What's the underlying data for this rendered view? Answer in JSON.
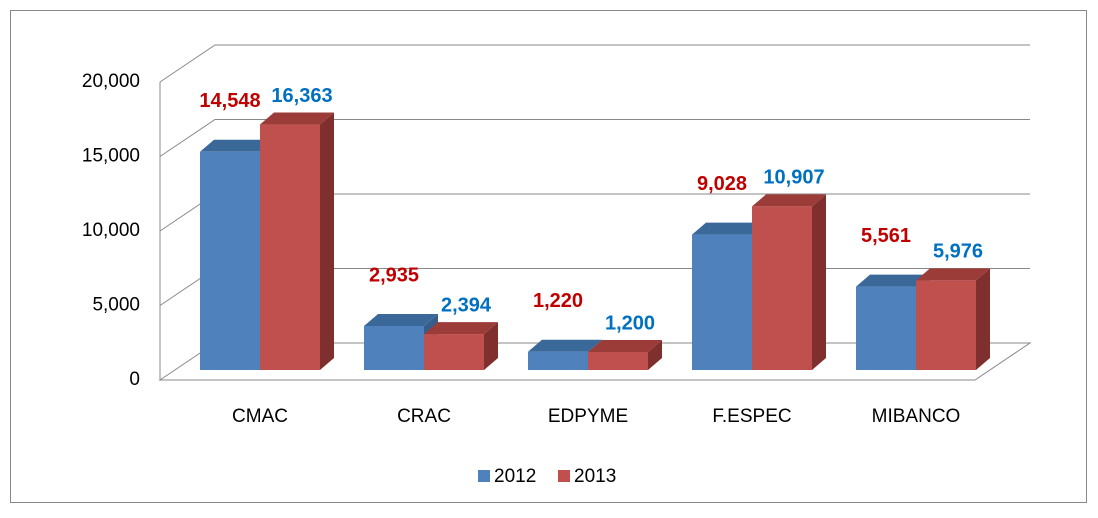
{
  "chart_data": {
    "type": "bar3d",
    "categories": [
      "CMAC",
      "CRAC",
      "EDPYME",
      "F.ESPEC",
      "MIBANCO"
    ],
    "series": [
      {
        "name": "2012",
        "color": "#4f81bd",
        "side_color": "#385d8a",
        "top_color": "#3a6899",
        "label_color": "#c00000",
        "values": [
          14548,
          2935,
          1220,
          9028,
          5561
        ],
        "value_labels": [
          "14,548",
          "2,935",
          "1,220",
          "9,028",
          "5,561"
        ]
      },
      {
        "name": "2013",
        "color": "#c0504d",
        "side_color": "#7f302e",
        "top_color": "#9b3c39",
        "label_color": "#0070c0",
        "values": [
          16363,
          2394,
          1200,
          10907,
          5976
        ],
        "value_labels": [
          "16,363",
          "2,394",
          "1,200",
          "10,907",
          "5,976"
        ]
      }
    ],
    "ylim": [
      0,
      20000
    ],
    "yticks": [
      0,
      {
        "value": 5000,
        "label": "5,000"
      },
      {
        "value": 10000,
        "label": "10,000"
      },
      {
        "value": 15000,
        "label": "15,000"
      },
      {
        "value": 20000,
        "label": "20,000"
      }
    ],
    "grid": true,
    "legend": "bottom"
  }
}
